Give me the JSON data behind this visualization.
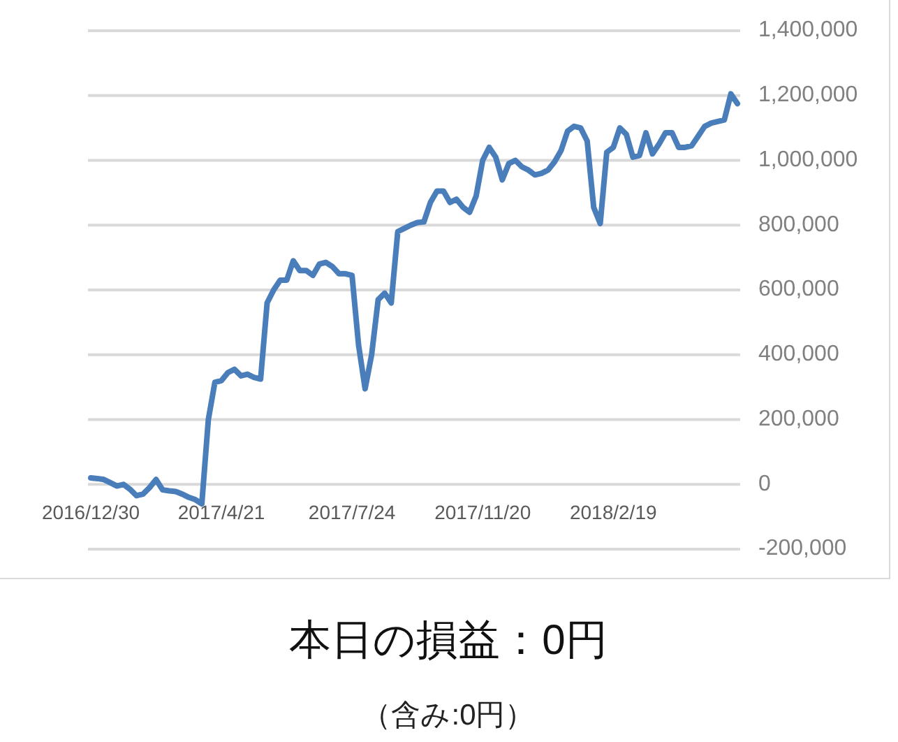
{
  "chart_data": {
    "type": "line",
    "categories": [
      "2016/12/30",
      null,
      null,
      null,
      null,
      null,
      null,
      null,
      null,
      null,
      null,
      null,
      null,
      null,
      null,
      null,
      null,
      null,
      null,
      null,
      "2017/4/21",
      null,
      null,
      null,
      null,
      null,
      null,
      null,
      null,
      null,
      null,
      null,
      null,
      null,
      null,
      null,
      null,
      null,
      null,
      null,
      "2017/7/24",
      null,
      null,
      null,
      null,
      null,
      null,
      null,
      null,
      null,
      null,
      null,
      null,
      null,
      null,
      null,
      null,
      null,
      null,
      null,
      "2017/11/20",
      null,
      null,
      null,
      null,
      null,
      null,
      null,
      null,
      null,
      null,
      null,
      null,
      null,
      null,
      null,
      null,
      null,
      null,
      null,
      "2018/2/19",
      null,
      null,
      null,
      null,
      null,
      null,
      null,
      null,
      null,
      null,
      null,
      null,
      null,
      null,
      null,
      null,
      null,
      null,
      null
    ],
    "values": [
      20000,
      18000,
      15000,
      5000,
      -5000,
      0,
      -15000,
      -35000,
      -30000,
      -10000,
      15000,
      -17000,
      -20000,
      -22000,
      -30000,
      -40000,
      -47000,
      -60000,
      200000,
      315000,
      320000,
      345000,
      355000,
      335000,
      340000,
      330000,
      325000,
      560000,
      600000,
      630000,
      630000,
      690000,
      660000,
      660000,
      645000,
      680000,
      685000,
      672000,
      650000,
      650000,
      645000,
      430000,
      295000,
      400000,
      570000,
      590000,
      560000,
      780000,
      790000,
      800000,
      808000,
      810000,
      870000,
      905000,
      905000,
      870000,
      880000,
      855000,
      840000,
      890000,
      1000000,
      1040000,
      1010000,
      940000,
      990000,
      1000000,
      980000,
      970000,
      955000,
      960000,
      970000,
      995000,
      1030000,
      1090000,
      1105000,
      1100000,
      1060000,
      855000,
      805000,
      1025000,
      1040000,
      1100000,
      1080000,
      1010000,
      1015000,
      1085000,
      1020000,
      1050000,
      1085000,
      1085000,
      1040000,
      1040000,
      1045000,
      1075000,
      1105000,
      1115000,
      1120000,
      1125000,
      1205000,
      1175000
    ],
    "color": "#4a7ebb",
    "ylim": [
      -200000,
      1400000
    ],
    "yticks": [
      {
        "value": -200000,
        "label": "-200,000"
      },
      0,
      {
        "value": 200000,
        "label": "200,000"
      },
      {
        "value": 400000,
        "label": "400,000"
      },
      {
        "value": 600000,
        "label": "600,000"
      },
      {
        "value": 800000,
        "label": "800,000"
      },
      {
        "value": 1000000,
        "label": "1,000,000"
      },
      {
        "value": 1200000,
        "label": "1,200,000"
      },
      {
        "value": 1400000,
        "label": "1,400,000"
      }
    ],
    "grid": "y",
    "annotations": [
      "本日の損益：0円",
      "（含み:0円）"
    ]
  }
}
